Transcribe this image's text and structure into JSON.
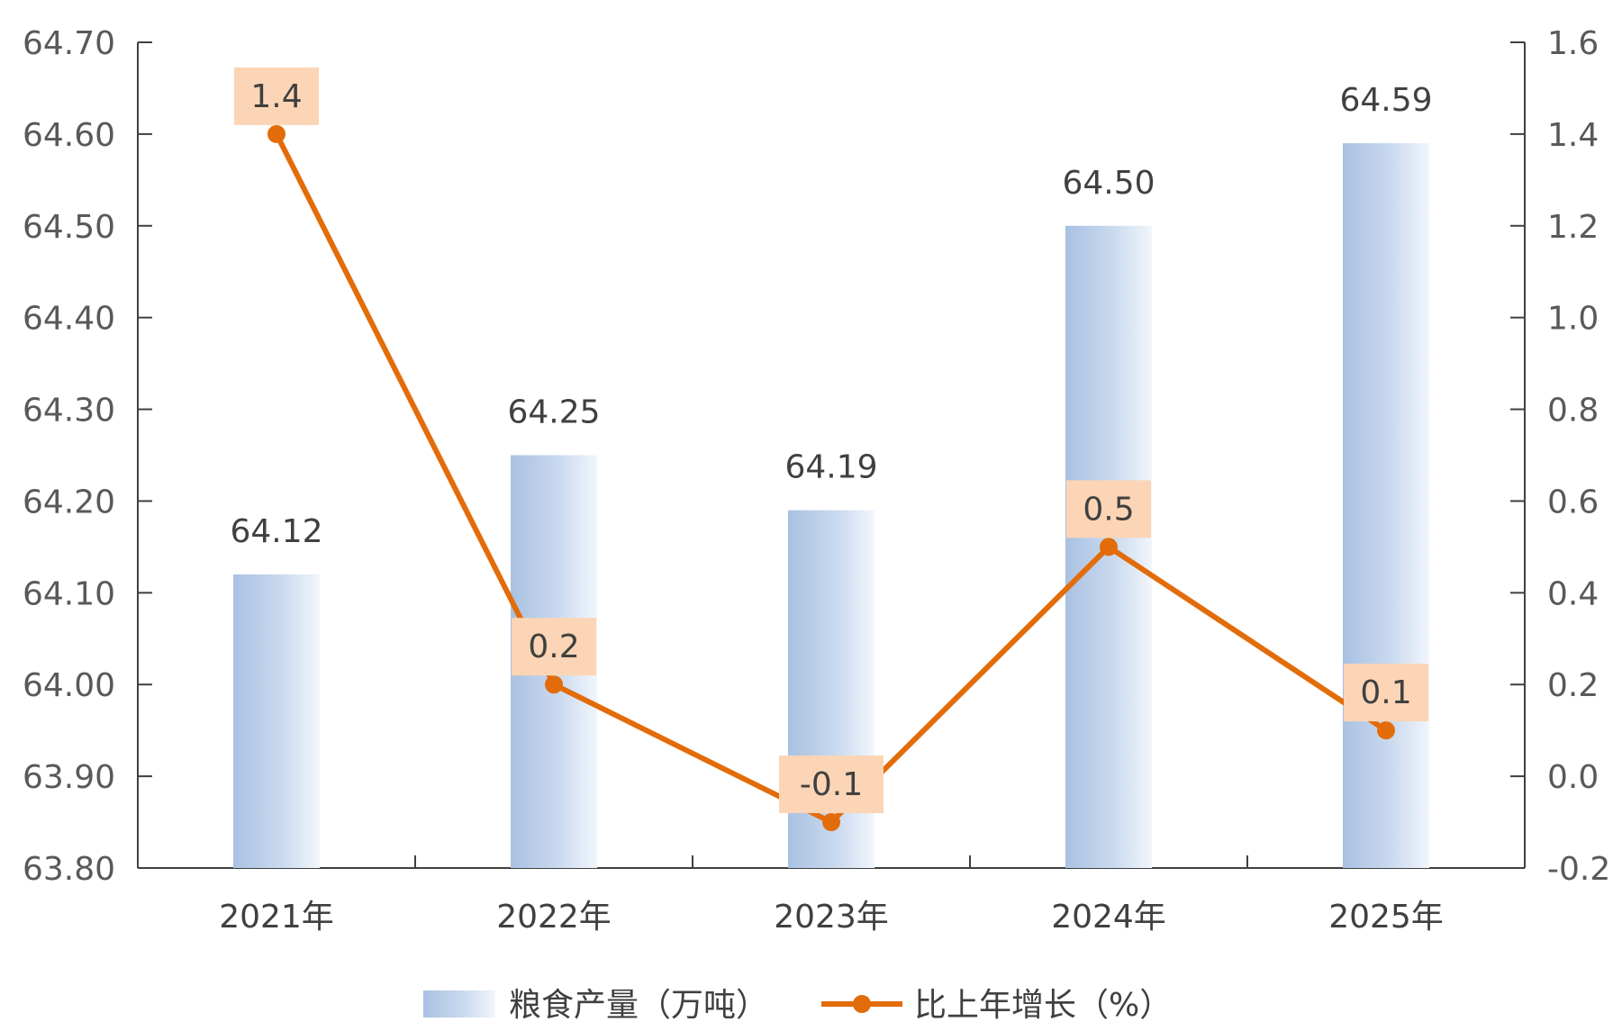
{
  "chart_data": {
    "type": "bar",
    "categories": [
      "2021年",
      "2022年",
      "2023年",
      "2024年",
      "2025年"
    ],
    "series": [
      {
        "name": "粮食产量（万吨）",
        "type": "bar",
        "axis": "left",
        "values": [
          64.12,
          64.25,
          64.19,
          64.5,
          64.59
        ],
        "labels": [
          "64.12",
          "64.25",
          "64.19",
          "64.50",
          "64.59"
        ],
        "color": "#a9c1e2"
      },
      {
        "name": "比上年增长（%）",
        "type": "line",
        "axis": "right",
        "values": [
          1.4,
          0.2,
          -0.1,
          0.5,
          0.1
        ],
        "labels": [
          "1.4",
          "0.2",
          "-0.1",
          "0.5",
          "0.1"
        ],
        "color": "#e36c0a",
        "label_bg": "#fbd5b5"
      }
    ],
    "y_left": {
      "min": 63.8,
      "max": 64.7,
      "ticks": [
        "64.70",
        "64.60",
        "64.50",
        "64.40",
        "64.30",
        "64.20",
        "64.10",
        "64.00",
        "63.90",
        "63.80"
      ]
    },
    "y_right": {
      "min": -0.2,
      "max": 1.6,
      "ticks": [
        "1.6",
        "1.4",
        "1.2",
        "1.0",
        "0.8",
        "0.6",
        "0.4",
        "0.2",
        "0.0",
        "-0.2"
      ]
    },
    "grid": false,
    "legend_position": "bottom"
  }
}
